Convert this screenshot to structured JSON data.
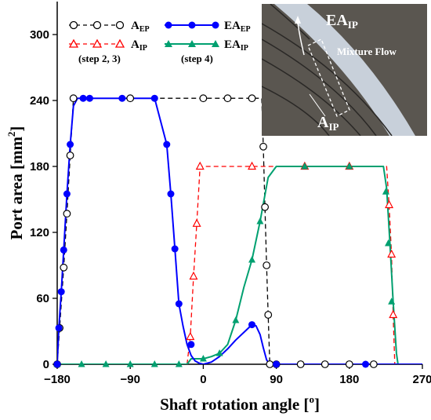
{
  "chart_data": {
    "type": "line",
    "xlabel": "Shaft rotation angle [",
    "xlabel_unit": "o",
    "xlabel_end": "]",
    "ylabel": "Port  area [mm",
    "ylabel_unit": "2",
    "ylabel_end": "]",
    "xlim": [
      -180,
      270
    ],
    "ylim": [
      0,
      330
    ],
    "xticks": [
      -180,
      -90,
      0,
      90,
      180,
      270
    ],
    "yticks": [
      0,
      60,
      120,
      180,
      240,
      300
    ],
    "xtick_labels": [
      "−180",
      "−90",
      "0",
      "90",
      "180",
      "270"
    ],
    "ytick_labels": [
      "0",
      "60",
      "120",
      "180",
      "240",
      "300"
    ],
    "series": [
      {
        "name": "A",
        "sub": "EP",
        "color": "#000000",
        "dash": "dashed",
        "marker": "open-circle",
        "x": [
          -180,
          -177,
          -172,
          -168,
          -164,
          -160,
          -157,
          72,
          74,
          76,
          78,
          80,
          82
        ],
        "y": [
          0,
          33,
          88,
          137,
          190,
          242,
          242,
          242,
          198,
          143,
          90,
          45,
          0
        ],
        "marker_x": [
          -180,
          -177,
          -172,
          -168,
          -164,
          -160,
          -90,
          0,
          30,
          60,
          74,
          76,
          78,
          80,
          82,
          90,
          120,
          150,
          180,
          210
        ],
        "marker_y": [
          0,
          33,
          88,
          137,
          190,
          242,
          242,
          242,
          242,
          242,
          198,
          143,
          90,
          45,
          0,
          0,
          0,
          0,
          0,
          0
        ]
      },
      {
        "name": "A",
        "sub": "IP",
        "note": "(step 2, 3)",
        "color": "#ff0000",
        "dash": "dashed",
        "marker": "open-triangle",
        "x": [
          -20,
          -16,
          -12,
          -8,
          -4,
          0,
          226,
          229,
          232,
          234,
          236,
          238
        ],
        "y": [
          0,
          25,
          80,
          128,
          180,
          180,
          180,
          145,
          100,
          45,
          0,
          0
        ],
        "marker_x": [
          -16,
          -12,
          -8,
          -4,
          60,
          125,
          180,
          229,
          232,
          234
        ],
        "marker_y": [
          25,
          80,
          128,
          180,
          180,
          180,
          180,
          145,
          100,
          45
        ]
      },
      {
        "name": "EA",
        "sub": "EP",
        "color": "#0000ff",
        "dash": "solid",
        "marker": "filled-circle",
        "x": [
          -180,
          -178,
          -175,
          -172,
          -168,
          -164,
          -160,
          -155,
          -148,
          -140,
          -100,
          -60,
          -45,
          -40,
          -35,
          -30,
          -25,
          -20,
          -15,
          -10,
          -5,
          0,
          10,
          20,
          30,
          40,
          50,
          60,
          65,
          70,
          74,
          78,
          82,
          90,
          270
        ],
        "y": [
          0,
          33,
          66,
          104,
          155,
          200,
          235,
          242,
          242,
          242,
          242,
          242,
          200,
          155,
          105,
          55,
          35,
          18,
          8,
          3,
          1,
          0,
          2,
          7,
          14,
          22,
          29,
          36,
          35,
          27,
          15,
          4,
          0,
          0,
          0
        ],
        "marker_x": [
          -180,
          -178,
          -175,
          -172,
          -168,
          -164,
          -148,
          -140,
          -100,
          -60,
          -45,
          -40,
          -35,
          -30,
          -15,
          60,
          90,
          200
        ],
        "marker_y": [
          0,
          33,
          66,
          104,
          155,
          200,
          242,
          242,
          242,
          242,
          200,
          155,
          105,
          55,
          18,
          36,
          0,
          0
        ]
      },
      {
        "name": "EA",
        "sub": "IP",
        "note": "(step 4)",
        "color": "#00a070",
        "dash": "solid",
        "marker": "filled-triangle",
        "x": [
          -180,
          -20,
          -15,
          0,
          10,
          20,
          30,
          40,
          50,
          60,
          70,
          80,
          90,
          222,
          226,
          230,
          234,
          238,
          240
        ],
        "y": [
          0,
          0,
          5,
          5,
          7,
          10,
          18,
          40,
          70,
          95,
          130,
          170,
          180,
          180,
          160,
          110,
          57,
          10,
          0
        ],
        "marker_x": [
          -180,
          -150,
          -120,
          -90,
          -60,
          -30,
          0,
          20,
          40,
          60,
          70,
          125,
          180,
          225,
          228,
          232
        ],
        "marker_y": [
          0,
          0,
          0,
          0,
          0,
          0,
          5,
          10,
          40,
          95,
          130,
          180,
          180,
          157,
          110,
          57
        ]
      }
    ],
    "inset": {
      "label_top": "EA",
      "label_top_sub": "IP",
      "label_flow": "Mixture Flow",
      "label_bottom": "A",
      "label_bottom_sub": "IP"
    }
  }
}
